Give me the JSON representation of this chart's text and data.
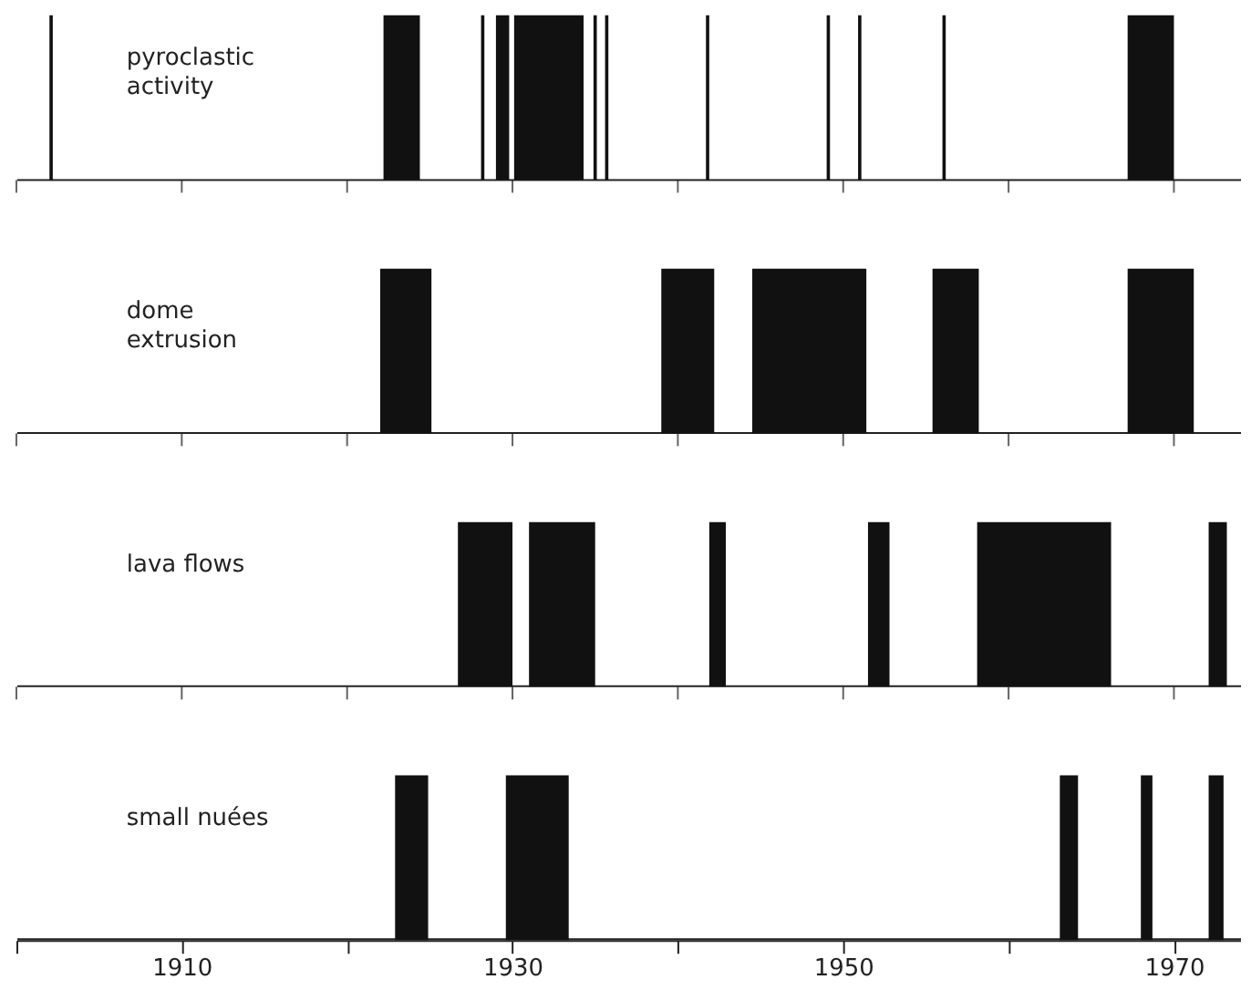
{
  "chart_data": {
    "type": "bar",
    "orientation": "horizontal",
    "categories": [
      "pyroclastic\nactivity",
      "dome\nextrusion",
      "lava  flows",
      "small nuées"
    ],
    "series": [
      {
        "color": "#111111",
        "base": [
          1902.0,
          1922.0,
          1926.7,
          1922.9
        ],
        "values": [
          0.2,
          3.1,
          3.3,
          2.0
        ]
      },
      {
        "color": "#111111",
        "base": [
          1922.2,
          1939.0,
          1931.0,
          1929.6
        ],
        "values": [
          2.2,
          3.2,
          4.0,
          3.8
        ]
      },
      {
        "color": "#111111",
        "base": [
          1928.1,
          1944.5,
          1941.9,
          1963.1
        ],
        "values": [
          0.2,
          6.9,
          1.0,
          1.1
        ]
      },
      {
        "color": "#111111",
        "base": [
          1929.0,
          1955.4,
          1951.5,
          1968.0
        ],
        "values": [
          0.8,
          2.8,
          1.3,
          0.7
        ]
      },
      {
        "color": "#111111",
        "base": [
          1930.1,
          1967.2,
          1958.1,
          1972.1
        ],
        "values": [
          4.2,
          4.0,
          8.1,
          0.9
        ]
      },
      {
        "color": "#111111",
        "base": [
          1934.9,
          null,
          1972.1,
          null
        ],
        "values": [
          0.2,
          null,
          1.1,
          null
        ]
      },
      {
        "color": "#111111",
        "base": [
          1935.6,
          null,
          null,
          null
        ],
        "values": [
          0.2,
          null,
          null,
          null
        ]
      },
      {
        "color": "#111111",
        "base": [
          1941.7,
          null,
          null,
          null
        ],
        "values": [
          0.2,
          null,
          null,
          null
        ]
      },
      {
        "color": "#111111",
        "base": [
          1949.0,
          null,
          null,
          null
        ],
        "values": [
          0.2,
          null,
          null,
          null
        ]
      },
      {
        "color": "#111111",
        "base": [
          1950.9,
          null,
          null,
          null
        ],
        "values": [
          0.2,
          null,
          null,
          null
        ]
      },
      {
        "color": "#111111",
        "base": [
          1956.0,
          null,
          null,
          null
        ],
        "values": [
          0.2,
          null,
          null,
          null
        ]
      },
      {
        "color": "#111111",
        "base": [
          1967.2,
          null,
          null,
          null
        ],
        "values": [
          2.8,
          null,
          null,
          null
        ]
      }
    ],
    "xlim": [
      1900,
      1974
    ],
    "xticks": [
      {
        "value": 1900,
        "label": null
      },
      1910,
      {
        "value": 1920,
        "label": null
      },
      1930,
      {
        "value": 1940,
        "label": null
      },
      1950,
      {
        "value": 1960,
        "label": null
      },
      1970
    ]
  }
}
